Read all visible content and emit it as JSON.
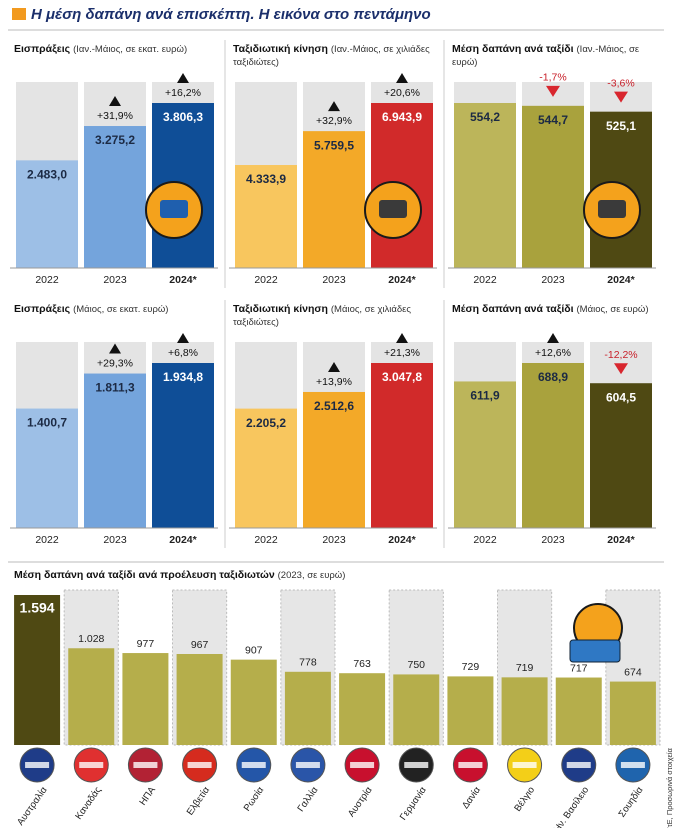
{
  "title": "Η μέση δαπάνη ανά επισκέπτη. Η εικόνα στο πεντάμηνο",
  "source": "ΤτΕ, Προσωρινά στοιχεία",
  "chart_data": [
    {
      "type": "bar",
      "title": "Εισπράξεις",
      "subtitle": "(Ιαν.-Μάιος, σε εκατ. ευρώ)",
      "categories": [
        "2022",
        "2023",
        "2024*"
      ],
      "values": [
        2483.0,
        3275.2,
        3806.3
      ],
      "value_labels": [
        "2.483,0",
        "3.275,2",
        "3.806,3"
      ],
      "colors": [
        "#9dbfe6",
        "#74a4dc",
        "#0f4e97"
      ],
      "changes": [
        null,
        31.9,
        16.2
      ],
      "change_labels": [
        null,
        "+31,9%",
        "+16,2%"
      ]
    },
    {
      "type": "bar",
      "title": "Ταξιδιωτική κίνηση",
      "subtitle": "(Ιαν.-Μάιος, σε χιλιάδες ταξιδιώτες)",
      "categories": [
        "2022",
        "2023",
        "2024*"
      ],
      "values": [
        4333.9,
        5759.5,
        6943.9
      ],
      "value_labels": [
        "4.333,9",
        "5.759,5",
        "6.943,9"
      ],
      "colors": [
        "#f8c65e",
        "#f3a928",
        "#d12a2a"
      ],
      "changes": [
        null,
        32.9,
        20.6
      ],
      "change_labels": [
        null,
        "+32,9%",
        "+20,6%"
      ]
    },
    {
      "type": "bar",
      "title": "Μέση δαπάνη ανά ταξίδι",
      "subtitle": "(Ιαν.-Μάιος, σε ευρώ)",
      "categories": [
        "2022",
        "2023",
        "2024*"
      ],
      "values": [
        554.2,
        544.7,
        525.1
      ],
      "value_labels": [
        "554,2",
        "544,7",
        "525,1"
      ],
      "colors": [
        "#bcb55a",
        "#a9a23d",
        "#4f4913"
      ],
      "changes": [
        null,
        -1.7,
        -3.6
      ],
      "change_labels": [
        null,
        "-1,7%",
        "-3,6%"
      ]
    },
    {
      "type": "bar",
      "title": "Εισπράξεις",
      "subtitle": "(Μάιος, σε εκατ. ευρώ)",
      "categories": [
        "2022",
        "2023",
        "2024*"
      ],
      "values": [
        1400.7,
        1811.3,
        1934.8
      ],
      "value_labels": [
        "1.400,7",
        "1.811,3",
        "1.934,8"
      ],
      "colors": [
        "#9dbfe6",
        "#74a4dc",
        "#0f4e97"
      ],
      "changes": [
        null,
        29.3,
        6.8
      ],
      "change_labels": [
        null,
        "+29,3%",
        "+6,8%"
      ]
    },
    {
      "type": "bar",
      "title": "Ταξιδιωτική κίνηση",
      "subtitle": "(Μάιος, σε χιλιάδες ταξιδιώτες)",
      "categories": [
        "2022",
        "2023",
        "2024*"
      ],
      "values": [
        2205.2,
        2512.6,
        3047.8
      ],
      "value_labels": [
        "2.205,2",
        "2.512,6",
        "3.047,8"
      ],
      "colors": [
        "#f8c65e",
        "#f3a928",
        "#d12a2a"
      ],
      "changes": [
        null,
        13.9,
        21.3
      ],
      "change_labels": [
        null,
        "+13,9%",
        "+21,3%"
      ]
    },
    {
      "type": "bar",
      "title": "Μέση δαπάνη ανά ταξίδι",
      "subtitle": "(Μάιος, σε ευρώ)",
      "categories": [
        "2022",
        "2023",
        "2024*"
      ],
      "values": [
        611.9,
        688.9,
        604.5
      ],
      "value_labels": [
        "611,9",
        "688,9",
        "604,5"
      ],
      "colors": [
        "#bcb55a",
        "#a9a23d",
        "#4f4913"
      ],
      "changes": [
        null,
        12.6,
        -12.2
      ],
      "change_labels": [
        null,
        "+12,6%",
        "-12,2%"
      ]
    },
    {
      "type": "bar",
      "title": "Μέση δαπάνη ανά ταξίδι ανά προέλευση ταξιδιωτών",
      "subtitle": "(2023, σε ευρώ)",
      "categories": [
        "Αυστραλία",
        "Καναδάς",
        "ΗΠΑ",
        "Ελβετία",
        "Ρωσία",
        "Γαλλία",
        "Αυστρία",
        "Γερμανία",
        "Δανία",
        "Βέλγιο",
        "Ην. Βασίλειο",
        "Σουηδία"
      ],
      "values": [
        1594,
        1028,
        977,
        967,
        907,
        778,
        763,
        750,
        729,
        719,
        717,
        674
      ],
      "value_labels": [
        "1.594",
        "1.028",
        "977",
        "967",
        "907",
        "778",
        "763",
        "750",
        "729",
        "719",
        "717",
        "674"
      ],
      "colors": [
        "#4f4913",
        "#b5ae4b",
        "#b5ae4b",
        "#b5ae4b",
        "#b5ae4b",
        "#b5ae4b",
        "#b5ae4b",
        "#b5ae4b",
        "#b5ae4b",
        "#b5ae4b",
        "#b5ae4b",
        "#b5ae4b"
      ]
    }
  ]
}
